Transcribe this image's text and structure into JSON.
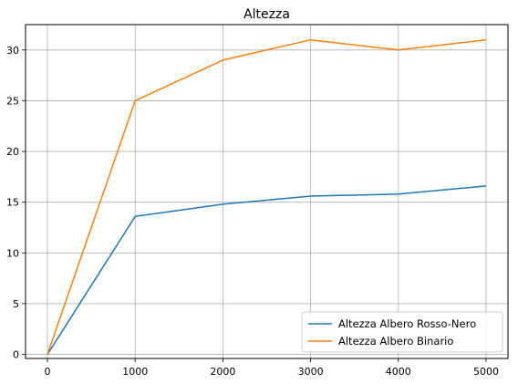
{
  "chart_data": {
    "type": "line",
    "title": "Altezza",
    "xlabel": "",
    "ylabel": "",
    "x": [
      0,
      1000,
      2000,
      3000,
      4000,
      5000
    ],
    "xticks": [
      0,
      1000,
      2000,
      3000,
      4000,
      5000
    ],
    "yticks": [
      0,
      5,
      10,
      15,
      20,
      25,
      30
    ],
    "xlim": [
      -250,
      5250
    ],
    "ylim": [
      -0.4,
      32.5
    ],
    "grid": true,
    "legend_position": "lower-right",
    "series": [
      {
        "name": "Altezza Albero Rosso-Nero",
        "color": "#1f77b4",
        "values": [
          0,
          13.6,
          14.8,
          15.6,
          15.8,
          16.6
        ]
      },
      {
        "name": "Altezza Albero Binario",
        "color": "#ff7f0e",
        "values": [
          0,
          25,
          29,
          31,
          30,
          31
        ]
      }
    ]
  }
}
